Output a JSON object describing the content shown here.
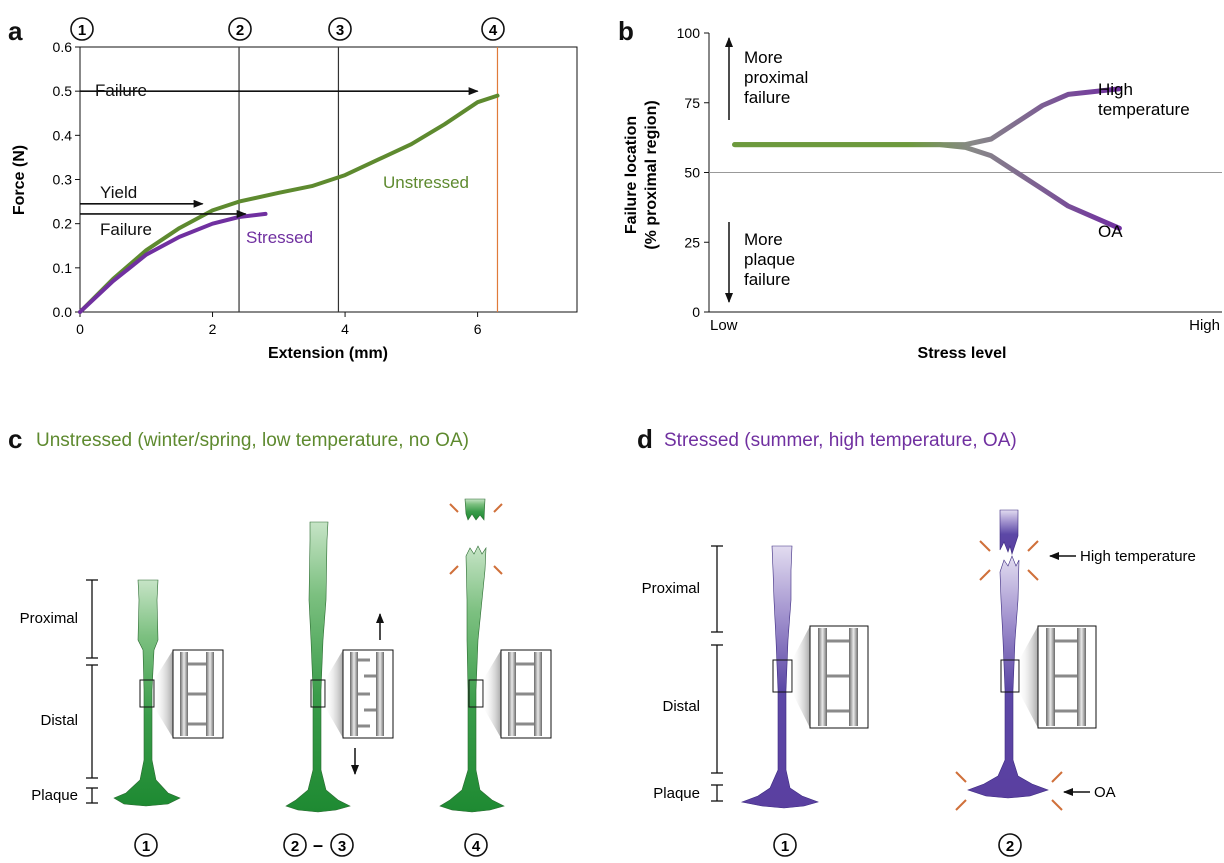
{
  "panels": {
    "a": {
      "letter": "a",
      "step_labels": [
        "1",
        "2",
        "3",
        "4"
      ]
    },
    "b": {
      "letter": "b"
    },
    "c": {
      "letter": "c",
      "title": "Unstressed (winter/spring, low temperature, no OA)",
      "bottom_labels": [
        "1",
        "2",
        "3",
        "4"
      ]
    },
    "d": {
      "letter": "d",
      "title": "Stressed (summer, high temperature, OA)",
      "bottom_labels": [
        "1",
        "2"
      ]
    }
  },
  "colors": {
    "unstressed": "#5e8a2f",
    "stressed": "#7030a0",
    "failure_line": "#e07b3a",
    "thread_green": "#2e9a3e",
    "thread_purple": "#5a3fa0",
    "burst": "#d0703a"
  },
  "chart_data": [
    {
      "type": "line",
      "panel": "a",
      "xlabel": "Extension (mm)",
      "ylabel": "Force (N)",
      "xlim": [
        0,
        7.5
      ],
      "ylim": [
        0,
        0.6
      ],
      "xticks": [
        "0",
        "2",
        "4",
        "6"
      ],
      "yticks": [
        "0.0",
        "0.1",
        "0.2",
        "0.3",
        "0.4",
        "0.5",
        "0.6"
      ],
      "series": [
        {
          "name": "Unstressed",
          "color": "#5e8a2f",
          "x": [
            0,
            0.5,
            1.0,
            1.5,
            2.0,
            2.4,
            3.0,
            3.5,
            4.0,
            4.5,
            5.0,
            5.5,
            6.0,
            6.3
          ],
          "y": [
            0,
            0.075,
            0.14,
            0.19,
            0.23,
            0.25,
            0.27,
            0.285,
            0.31,
            0.345,
            0.38,
            0.425,
            0.475,
            0.49
          ]
        },
        {
          "name": "Stressed",
          "color": "#7030a0",
          "x": [
            0,
            0.5,
            1.0,
            1.5,
            2.0,
            2.4,
            2.8
          ],
          "y": [
            0,
            0.07,
            0.13,
            0.17,
            0.2,
            0.215,
            0.222
          ]
        }
      ],
      "vlines": [
        {
          "x": 2.4,
          "color": "#333333"
        },
        {
          "x": 3.9,
          "color": "#333333"
        },
        {
          "x": 6.3,
          "color": "#e07b3a"
        }
      ],
      "annotations": [
        {
          "text": "Failure",
          "y": 0.5,
          "x_from": 0,
          "x_to": 6.0
        },
        {
          "text": "Yield",
          "y": 0.245,
          "x_from": 0,
          "x_to": 1.85
        },
        {
          "text": "Failure",
          "y": 0.222,
          "x_from": 0,
          "x_to": 2.5
        }
      ]
    },
    {
      "type": "line",
      "panel": "b",
      "xlabel": "Stress level",
      "ylabel_lines": [
        "Failure location",
        "(% proximal region)"
      ],
      "xticks": [
        "Low",
        "High"
      ],
      "yticks": [
        "0",
        "25",
        "50",
        "75",
        "100"
      ],
      "ylim": [
        0,
        100
      ],
      "reference_line": 50,
      "series": [
        {
          "name": "High temperature",
          "x": [
            0.05,
            0.45,
            0.5,
            0.55,
            0.6,
            0.65,
            0.7,
            0.8
          ],
          "y": [
            60,
            60,
            60,
            62,
            68,
            74,
            78,
            80
          ]
        },
        {
          "name": "OA",
          "x": [
            0.05,
            0.45,
            0.5,
            0.55,
            0.6,
            0.65,
            0.7,
            0.8
          ],
          "y": [
            60,
            60,
            59,
            56,
            50,
            44,
            38,
            30
          ]
        }
      ],
      "arrow_labels": {
        "up": [
          "More",
          "proximal",
          "failure"
        ],
        "down": [
          "More",
          "plaque",
          "failure"
        ]
      }
    }
  ],
  "region_labels": {
    "proximal": "Proximal",
    "distal": "Distal",
    "plaque": "Plaque"
  },
  "callouts": {
    "high_temperature": "High temperature",
    "oa": "OA"
  }
}
